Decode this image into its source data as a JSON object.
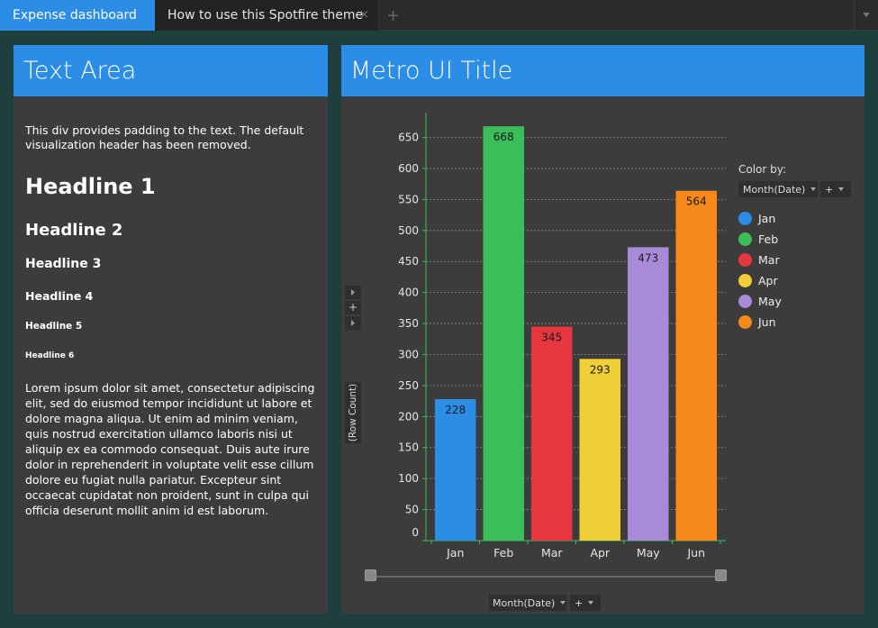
{
  "tabs": {
    "active": "Expense dashboard",
    "second": "How to use this Spotfire theme",
    "close_glyph": "×",
    "add_glyph": "+"
  },
  "left_panel": {
    "title": "Text Area",
    "intro": "This div provides padding to the text. The default visualization header has been removed.",
    "h1": "Headline 1",
    "h2": "Headline 2",
    "h3": "Headline 3",
    "h4": "Headline 4",
    "h5": "Headline 5",
    "h6": "Headline 6",
    "lorem": "Lorem ipsum dolor sit amet, consectetur adipiscing elit, sed do eiusmod tempor incididunt ut labore et dolore magna aliqua. Ut enim ad minim veniam, quis nostrud exercitation ullamco laboris nisi ut aliquip ex ea commodo consequat. Duis aute irure dolor in reprehenderit in voluptate velit esse cillum dolore eu fugiat nulla pariatur. Excepteur sint occaecat cupidatat non proident, sunt in culpa qui officia deserunt mollit anim id est laborum."
  },
  "right_panel": {
    "title": "Metro UI Title",
    "y_axis_label": "(Row Count)",
    "y_add_glyph": "+",
    "x_axis_selector": "Month(Date)",
    "x_add_glyph": "+",
    "legend": {
      "title": "Color by:",
      "selector": "Month(Date)",
      "add_glyph": "+"
    }
  },
  "chart_data": {
    "type": "bar",
    "categories": [
      "Jan",
      "Feb",
      "Mar",
      "Apr",
      "May",
      "Jun"
    ],
    "values": [
      228,
      668,
      345,
      293,
      473,
      564
    ],
    "colors": [
      "#2b8de6",
      "#3bbd5a",
      "#e6363f",
      "#f0cf36",
      "#a98ad9",
      "#f58a1a"
    ],
    "ylim": [
      0,
      690
    ],
    "yticks": [
      0,
      50,
      100,
      150,
      200,
      250,
      300,
      350,
      400,
      450,
      500,
      550,
      600,
      650
    ],
    "grid": true,
    "legend_position": "top-right"
  }
}
